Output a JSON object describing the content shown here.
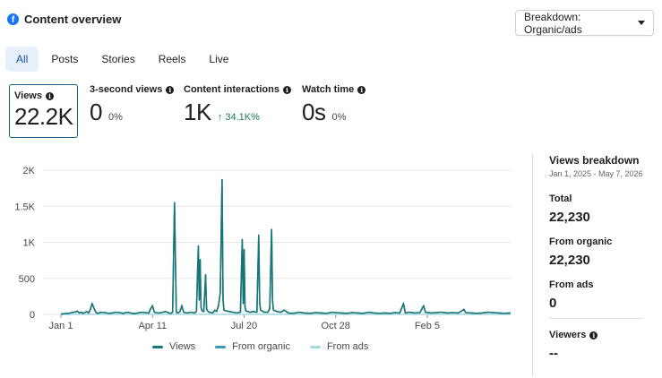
{
  "header": {
    "title": "Content overview",
    "logo": "facebook-icon"
  },
  "breakdown": {
    "label": "Breakdown: Organic/ads"
  },
  "tabs": [
    {
      "label": "All",
      "active": true
    },
    {
      "label": "Posts"
    },
    {
      "label": "Stories"
    },
    {
      "label": "Reels"
    },
    {
      "label": "Live"
    }
  ],
  "metrics": {
    "views": {
      "label": "Views",
      "value": "22.2K"
    },
    "three_sec": {
      "label": "3-second views",
      "value": "0",
      "pct": "0%"
    },
    "interactions": {
      "label": "Content interactions",
      "value": "1K",
      "pct": "34.1K%"
    },
    "watch_time": {
      "label": "Watch time",
      "value": "0s",
      "pct": "0%"
    }
  },
  "colors": {
    "views": "#177575",
    "organic": "#3a9ab8",
    "ads": "#a6d9e0",
    "accent": "#1877f2"
  },
  "chart_data": {
    "type": "line",
    "y_ticks": [
      "2K",
      "1.5K",
      "1K",
      "500",
      "0"
    ],
    "ylim": [
      0,
      2000
    ],
    "x_ticks": [
      "Jan 1",
      "Apr 11",
      "Jul 20",
      "Oct 28",
      "Feb 5"
    ],
    "x_tick_days": [
      0,
      100,
      200,
      300,
      400
    ],
    "x_range_days": [
      0,
      491
    ],
    "series": [
      {
        "name": "Views",
        "color": "#177575"
      },
      {
        "name": "From organic",
        "color": "#3a9ab8"
      },
      {
        "name": "From ads",
        "color": "#a6d9e0"
      }
    ],
    "points": [
      [
        0,
        5
      ],
      [
        4,
        10
      ],
      [
        8,
        14
      ],
      [
        12,
        25
      ],
      [
        16,
        35
      ],
      [
        18,
        45
      ],
      [
        20,
        20
      ],
      [
        22,
        30
      ],
      [
        24,
        15
      ],
      [
        26,
        25
      ],
      [
        28,
        40
      ],
      [
        30,
        20
      ],
      [
        32,
        60
      ],
      [
        34,
        150
      ],
      [
        36,
        90
      ],
      [
        38,
        30
      ],
      [
        40,
        15
      ],
      [
        44,
        30
      ],
      [
        48,
        25
      ],
      [
        52,
        15
      ],
      [
        56,
        20
      ],
      [
        60,
        30
      ],
      [
        64,
        25
      ],
      [
        68,
        15
      ],
      [
        72,
        30
      ],
      [
        76,
        20
      ],
      [
        80,
        10
      ],
      [
        84,
        20
      ],
      [
        88,
        30
      ],
      [
        92,
        25
      ],
      [
        96,
        20
      ],
      [
        98,
        80
      ],
      [
        100,
        120
      ],
      [
        102,
        30
      ],
      [
        106,
        20
      ],
      [
        110,
        25
      ],
      [
        114,
        40
      ],
      [
        118,
        20
      ],
      [
        120,
        15
      ],
      [
        122,
        30
      ],
      [
        124,
        1550
      ],
      [
        126,
        30
      ],
      [
        128,
        20
      ],
      [
        130,
        40
      ],
      [
        132,
        120
      ],
      [
        134,
        30
      ],
      [
        138,
        20
      ],
      [
        142,
        30
      ],
      [
        146,
        20
      ],
      [
        148,
        40
      ],
      [
        150,
        950
      ],
      [
        151,
        200
      ],
      [
        152,
        760
      ],
      [
        153,
        100
      ],
      [
        154,
        50
      ],
      [
        156,
        40
      ],
      [
        158,
        550
      ],
      [
        159,
        80
      ],
      [
        160,
        50
      ],
      [
        162,
        30
      ],
      [
        166,
        20
      ],
      [
        168,
        60
      ],
      [
        170,
        40
      ],
      [
        172,
        120
      ],
      [
        174,
        300
      ],
      [
        176,
        1870
      ],
      [
        177,
        200
      ],
      [
        178,
        60
      ],
      [
        180,
        50
      ],
      [
        184,
        40
      ],
      [
        188,
        30
      ],
      [
        192,
        20
      ],
      [
        196,
        30
      ],
      [
        198,
        1040
      ],
      [
        199,
        150
      ],
      [
        200,
        900
      ],
      [
        201,
        100
      ],
      [
        202,
        50
      ],
      [
        206,
        30
      ],
      [
        210,
        40
      ],
      [
        214,
        30
      ],
      [
        216,
        1100
      ],
      [
        217,
        150
      ],
      [
        218,
        60
      ],
      [
        222,
        30
      ],
      [
        226,
        30
      ],
      [
        228,
        80
      ],
      [
        230,
        1180
      ],
      [
        231,
        200
      ],
      [
        232,
        60
      ],
      [
        236,
        40
      ],
      [
        240,
        30
      ],
      [
        244,
        60
      ],
      [
        248,
        20
      ],
      [
        252,
        15
      ],
      [
        256,
        20
      ],
      [
        260,
        30
      ],
      [
        266,
        20
      ],
      [
        272,
        15
      ],
      [
        278,
        25
      ],
      [
        284,
        20
      ],
      [
        290,
        15
      ],
      [
        296,
        30
      ],
      [
        300,
        25
      ],
      [
        306,
        20
      ],
      [
        312,
        15
      ],
      [
        318,
        25
      ],
      [
        324,
        20
      ],
      [
        330,
        15
      ],
      [
        336,
        30
      ],
      [
        342,
        20
      ],
      [
        348,
        15
      ],
      [
        354,
        20
      ],
      [
        360,
        15
      ],
      [
        364,
        25
      ],
      [
        370,
        20
      ],
      [
        374,
        150
      ],
      [
        376,
        20
      ],
      [
        380,
        30
      ],
      [
        386,
        20
      ],
      [
        392,
        25
      ],
      [
        396,
        120
      ],
      [
        398,
        30
      ],
      [
        404,
        20
      ],
      [
        410,
        25
      ],
      [
        416,
        30
      ],
      [
        422,
        20
      ],
      [
        428,
        25
      ],
      [
        434,
        20
      ],
      [
        440,
        70
      ],
      [
        442,
        25
      ],
      [
        448,
        20
      ],
      [
        454,
        15
      ],
      [
        460,
        20
      ],
      [
        466,
        30
      ],
      [
        472,
        25
      ],
      [
        478,
        20
      ],
      [
        484,
        15
      ],
      [
        491,
        20
      ]
    ]
  },
  "legend": [
    {
      "label": "Views"
    },
    {
      "label": "From organic"
    },
    {
      "label": "From ads"
    }
  ],
  "side": {
    "title": "Views breakdown",
    "date_range": "Jan 1, 2025 - May 7, 2026",
    "total_label": "Total",
    "total_value": "22,230",
    "organic_label": "From organic",
    "organic_value": "22,230",
    "ads_label": "From ads",
    "ads_value": "0",
    "viewers_label": "Viewers",
    "viewers_value": "--"
  }
}
